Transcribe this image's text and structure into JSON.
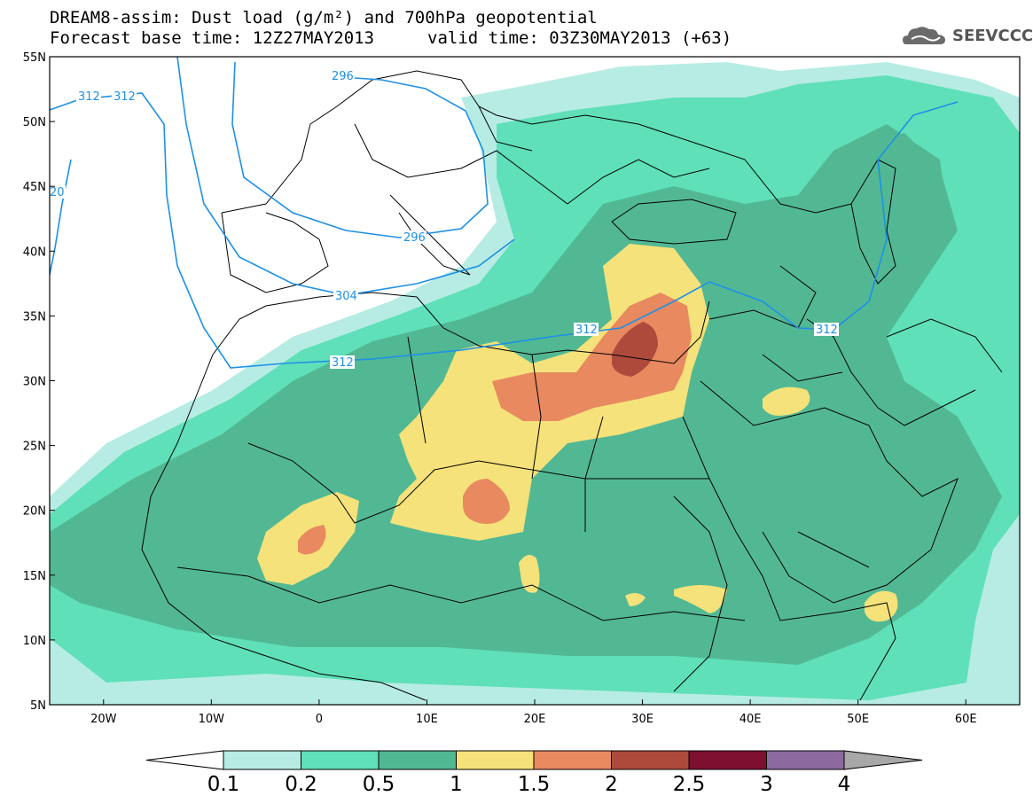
{
  "title": {
    "line1": "DREAM8-assim: Dust load (g/m²) and 700hPa geopotential",
    "line2_left": "Forecast base time: 12Z27MAY2013",
    "line2_right": "valid time: 03Z30MAY2013 (+63)"
  },
  "logo": {
    "text": "SEEVCCC",
    "icon": "cloud-logo-icon"
  },
  "map": {
    "lon_range": [
      -25,
      65
    ],
    "lat_range": [
      5,
      55
    ],
    "lat_ticks": [
      "55N",
      "50N",
      "45N",
      "40N",
      "35N",
      "30N",
      "25N",
      "20N",
      "15N",
      "10N",
      "5N"
    ],
    "lon_ticks": [
      "20W",
      "10W",
      "0",
      "10E",
      "20E",
      "30E",
      "40E",
      "50E",
      "60E"
    ],
    "contour_labels": [
      "312",
      "312",
      "20",
      "296",
      "296",
      "304",
      "312",
      "312",
      "312"
    ]
  },
  "colorbar": {
    "labels": [
      "0.1",
      "0.2",
      "0.5",
      "1",
      "1.5",
      "2",
      "2.5",
      "3",
      "4"
    ],
    "colors": [
      "#ffffff",
      "#b7ece4",
      "#5fe0b8",
      "#52b894",
      "#f5e27a",
      "#e8895f",
      "#ad4a3c",
      "#7d0f2f",
      "#8c6aa0",
      "#a8a8a8"
    ]
  },
  "colors": {
    "contour": "#1e90e6",
    "level_0_1": "#b7ece4",
    "level_0_2": "#5fe0b8",
    "level_0_5": "#52b894",
    "level_1": "#f5e27a",
    "level_1_5": "#e8895f",
    "level_2": "#ad4a3c"
  }
}
